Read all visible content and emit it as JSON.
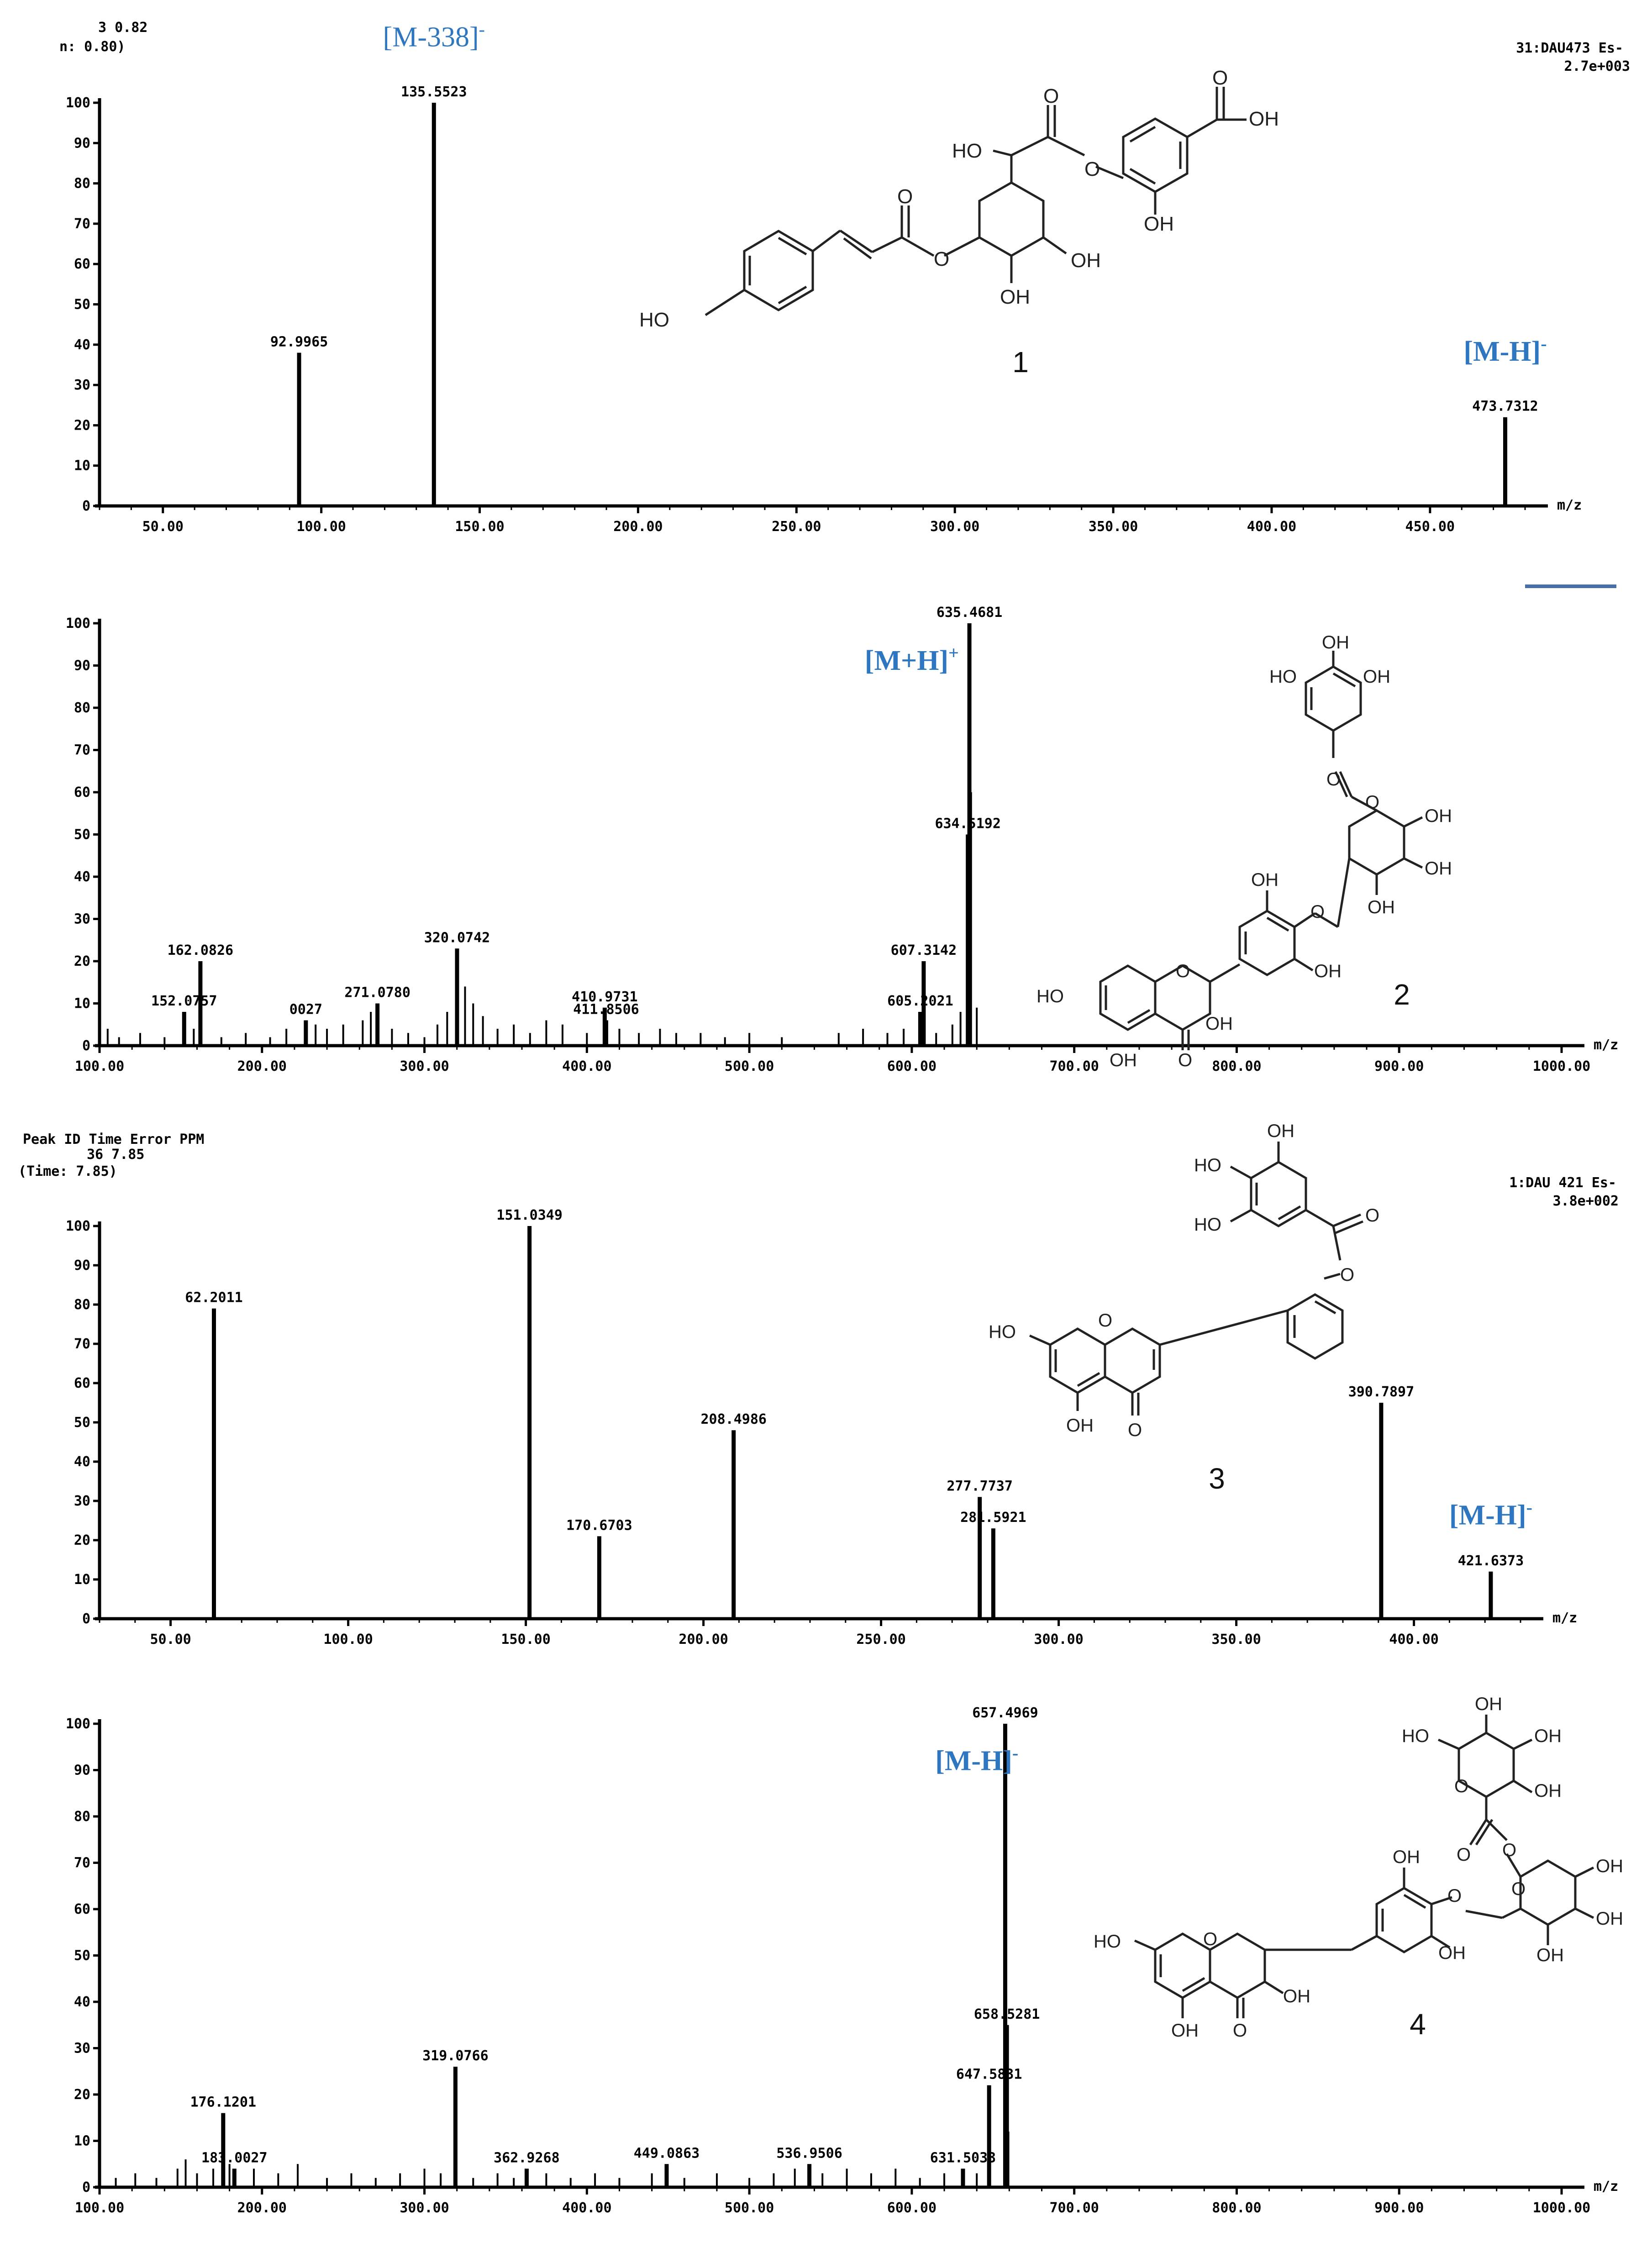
{
  "panels": [
    {
      "id": "p1",
      "header": {
        "lines": [
          "3   0.82",
          "n: 0.80)"
        ],
        "right_lines": [
          "31:DAU473  Es-",
          "2.7e+003"
        ]
      },
      "compound_number": "1",
      "unit_label": "m/z",
      "chart_data": {
        "type": "bar",
        "xlabel": "m/z",
        "ylabel": "",
        "xlim": [
          30,
          480
        ],
        "ylim": [
          0,
          100
        ],
        "x_ticks": [
          50,
          100,
          150,
          200,
          250,
          300,
          350,
          400,
          450
        ],
        "x_tick_labels": [
          "50.00",
          "100.00",
          "150.00",
          "200.00",
          "250.00",
          "300.00",
          "350.00",
          "400.00",
          "450.00"
        ],
        "y_ticks": [
          0,
          10,
          20,
          30,
          40,
          50,
          60,
          70,
          80,
          90,
          100
        ],
        "y_tick_labels": [
          "0",
          "10",
          "20",
          "30",
          "40",
          "50",
          "60",
          "70",
          "80",
          "90",
          "100"
        ],
        "peaks": [
          {
            "x": 92.9965,
            "y": 38,
            "label": "92.9965"
          },
          {
            "x": 135.5523,
            "y": 100,
            "label": "135.5523"
          },
          {
            "x": 473.7312,
            "y": 22,
            "label": "473.7312"
          }
        ],
        "annotations": [
          {
            "text": "[M-338]",
            "sup": "-",
            "x": 135.5523,
            "y": 114
          },
          {
            "text": "[M-H]",
            "sup": "-",
            "x": 473.7312,
            "y": 36
          }
        ]
      }
    },
    {
      "id": "p2",
      "header": {
        "lines": [],
        "right_lines": []
      },
      "compound_number": "2",
      "unit_label": "m/z",
      "chart_data": {
        "type": "bar",
        "xlabel": "m/z",
        "ylabel": "",
        "xlim": [
          100,
          1000
        ],
        "ylim": [
          0,
          100
        ],
        "x_ticks": [
          100,
          200,
          300,
          400,
          500,
          600,
          700,
          800,
          900,
          1000
        ],
        "x_tick_labels": [
          "100.00",
          "200.00",
          "300.00",
          "400.00",
          "500.00",
          "600.00",
          "700.00",
          "800.00",
          "900.00",
          "1000.00"
        ],
        "y_ticks": [
          0,
          10,
          20,
          30,
          40,
          50,
          60,
          70,
          80,
          90,
          100
        ],
        "y_tick_labels": [
          "0",
          "10",
          "20",
          "30",
          "40",
          "50",
          "60",
          "70",
          "80",
          "90",
          "100"
        ],
        "peaks": [
          {
            "x": 152.0757,
            "y": 8,
            "label": "152.0757"
          },
          {
            "x": 162.0826,
            "y": 20,
            "label": "162.0826"
          },
          {
            "x": 227.0027,
            "y": 6,
            "label": "0027"
          },
          {
            "x": 271.078,
            "y": 10,
            "label": "271.0780"
          },
          {
            "x": 320.0742,
            "y": 23,
            "label": "320.0742"
          },
          {
            "x": 410.9731,
            "y": 9,
            "label": "410.9731"
          },
          {
            "x": 411.8506,
            "y": 6,
            "label": "411.8506"
          },
          {
            "x": 605.2021,
            "y": 8,
            "label": "605.2021"
          },
          {
            "x": 607.3142,
            "y": 20,
            "label": "607.3142"
          },
          {
            "x": 634.5192,
            "y": 50,
            "label": "634.5192"
          },
          {
            "x": 635.4681,
            "y": 100,
            "label": "635.4681"
          },
          {
            "x": 636.5,
            "y": 60,
            "label": ""
          },
          {
            "x": 105,
            "y": 4,
            "label": ""
          },
          {
            "x": 112,
            "y": 2,
            "label": ""
          },
          {
            "x": 125,
            "y": 3,
            "label": ""
          },
          {
            "x": 140,
            "y": 2,
            "label": ""
          },
          {
            "x": 158,
            "y": 4,
            "label": ""
          },
          {
            "x": 175,
            "y": 2,
            "label": ""
          },
          {
            "x": 190,
            "y": 3,
            "label": ""
          },
          {
            "x": 205,
            "y": 2,
            "label": ""
          },
          {
            "x": 215,
            "y": 4,
            "label": ""
          },
          {
            "x": 233,
            "y": 5,
            "label": ""
          },
          {
            "x": 240,
            "y": 4,
            "label": ""
          },
          {
            "x": 250,
            "y": 5,
            "label": ""
          },
          {
            "x": 262,
            "y": 6,
            "label": ""
          },
          {
            "x": 267,
            "y": 8,
            "label": ""
          },
          {
            "x": 280,
            "y": 4,
            "label": ""
          },
          {
            "x": 290,
            "y": 3,
            "label": ""
          },
          {
            "x": 300,
            "y": 2,
            "label": ""
          },
          {
            "x": 308,
            "y": 5,
            "label": ""
          },
          {
            "x": 314,
            "y": 8,
            "label": ""
          },
          {
            "x": 325,
            "y": 14,
            "label": ""
          },
          {
            "x": 330,
            "y": 10,
            "label": ""
          },
          {
            "x": 336,
            "y": 7,
            "label": ""
          },
          {
            "x": 345,
            "y": 4,
            "label": ""
          },
          {
            "x": 355,
            "y": 5,
            "label": ""
          },
          {
            "x": 365,
            "y": 3,
            "label": ""
          },
          {
            "x": 375,
            "y": 6,
            "label": ""
          },
          {
            "x": 385,
            "y": 5,
            "label": ""
          },
          {
            "x": 400,
            "y": 3,
            "label": ""
          },
          {
            "x": 420,
            "y": 4,
            "label": ""
          },
          {
            "x": 432,
            "y": 3,
            "label": ""
          },
          {
            "x": 445,
            "y": 4,
            "label": ""
          },
          {
            "x": 455,
            "y": 3,
            "label": ""
          },
          {
            "x": 470,
            "y": 3,
            "label": ""
          },
          {
            "x": 485,
            "y": 2,
            "label": ""
          },
          {
            "x": 500,
            "y": 3,
            "label": ""
          },
          {
            "x": 520,
            "y": 2,
            "label": ""
          },
          {
            "x": 555,
            "y": 3,
            "label": ""
          },
          {
            "x": 570,
            "y": 4,
            "label": ""
          },
          {
            "x": 585,
            "y": 3,
            "label": ""
          },
          {
            "x": 595,
            "y": 4,
            "label": ""
          },
          {
            "x": 615,
            "y": 3,
            "label": ""
          },
          {
            "x": 625,
            "y": 5,
            "label": ""
          },
          {
            "x": 630,
            "y": 8,
            "label": ""
          },
          {
            "x": 640,
            "y": 9,
            "label": ""
          }
        ],
        "annotations": [
          {
            "text": "[M+H]",
            "sup": "+",
            "x": 600,
            "y": 89
          }
        ]
      }
    },
    {
      "id": "p3",
      "header": {
        "lines": [
          "Peak ID   Time    Error PPM",
          "36    7.85",
          "(Time: 7.85)"
        ],
        "right_lines": [
          "1:DAU 421 Es-",
          "3.8e+002"
        ]
      },
      "compound_number": "3",
      "unit_label": "m/z",
      "chart_data": {
        "type": "bar",
        "xlabel": "m/z",
        "ylabel": "",
        "xlim": [
          30,
          430
        ],
        "ylim": [
          0,
          100
        ],
        "x_ticks": [
          50,
          100,
          150,
          200,
          250,
          300,
          350,
          400
        ],
        "x_tick_labels": [
          "50.00",
          "100.00",
          "150.00",
          "200.00",
          "250.00",
          "300.00",
          "350.00",
          "400.00"
        ],
        "y_ticks": [
          0,
          10,
          20,
          30,
          40,
          50,
          60,
          70,
          80,
          90,
          100
        ],
        "y_tick_labels": [
          "0",
          "10",
          "20",
          "30",
          "40",
          "50",
          "60",
          "70",
          "80",
          "90",
          "100"
        ],
        "peaks": [
          {
            "x": 62.2011,
            "y": 79,
            "label": "62.2011"
          },
          {
            "x": 151.0349,
            "y": 100,
            "label": "151.0349"
          },
          {
            "x": 170.6703,
            "y": 21,
            "label": "170.6703"
          },
          {
            "x": 208.4986,
            "y": 48,
            "label": "208.4986"
          },
          {
            "x": 277.7737,
            "y": 31,
            "label": "277.7737"
          },
          {
            "x": 281.5921,
            "y": 23,
            "label": "281.5921"
          },
          {
            "x": 390.7897,
            "y": 55,
            "label": "390.7897"
          },
          {
            "x": 421.6373,
            "y": 12,
            "label": "421.6373"
          }
        ],
        "annotations": [
          {
            "text": "[M-H]",
            "sup": "-",
            "x": 421.6373,
            "y": 24
          }
        ]
      }
    },
    {
      "id": "p4",
      "header": {
        "lines": [],
        "right_lines": []
      },
      "compound_number": "4",
      "unit_label": "m/z",
      "chart_data": {
        "type": "bar",
        "xlabel": "m/z",
        "ylabel": "",
        "xlim": [
          100,
          1000
        ],
        "ylim": [
          0,
          100
        ],
        "x_ticks": [
          100,
          200,
          300,
          400,
          500,
          600,
          700,
          800,
          900,
          1000
        ],
        "x_tick_labels": [
          "100.00",
          "200.00",
          "300.00",
          "400.00",
          "500.00",
          "600.00",
          "700.00",
          "800.00",
          "900.00",
          "1000.00"
        ],
        "y_ticks": [
          0,
          10,
          20,
          30,
          40,
          50,
          60,
          70,
          80,
          90,
          100
        ],
        "y_tick_labels": [
          "0",
          "10",
          "20",
          "30",
          "40",
          "50",
          "60",
          "70",
          "80",
          "90",
          "100"
        ],
        "peaks": [
          {
            "x": 176.1201,
            "y": 16,
            "label": "176.1201"
          },
          {
            "x": 183.0027,
            "y": 4,
            "label": "183.0027"
          },
          {
            "x": 319.0766,
            "y": 26,
            "label": "319.0766"
          },
          {
            "x": 362.9268,
            "y": 4,
            "label": "362.9268"
          },
          {
            "x": 449.0863,
            "y": 5,
            "label": "449.0863"
          },
          {
            "x": 536.9506,
            "y": 5,
            "label": "536.9506"
          },
          {
            "x": 631.5033,
            "y": 4,
            "label": "631.5033"
          },
          {
            "x": 647.5831,
            "y": 22,
            "label": "647.5831"
          },
          {
            "x": 657.4969,
            "y": 100,
            "label": "657.4969"
          },
          {
            "x": 658.5281,
            "y": 35,
            "label": "658.5281"
          },
          {
            "x": 659.5,
            "y": 12,
            "label": ""
          },
          {
            "x": 110,
            "y": 2,
            "label": ""
          },
          {
            "x": 122,
            "y": 3,
            "label": ""
          },
          {
            "x": 135,
            "y": 2,
            "label": ""
          },
          {
            "x": 148,
            "y": 4,
            "label": ""
          },
          {
            "x": 153,
            "y": 6,
            "label": ""
          },
          {
            "x": 160,
            "y": 3,
            "label": ""
          },
          {
            "x": 170,
            "y": 4,
            "label": ""
          },
          {
            "x": 180,
            "y": 5,
            "label": ""
          },
          {
            "x": 195,
            "y": 4,
            "label": ""
          },
          {
            "x": 210,
            "y": 3,
            "label": ""
          },
          {
            "x": 222,
            "y": 5,
            "label": ""
          },
          {
            "x": 240,
            "y": 2,
            "label": ""
          },
          {
            "x": 255,
            "y": 3,
            "label": ""
          },
          {
            "x": 270,
            "y": 2,
            "label": ""
          },
          {
            "x": 285,
            "y": 3,
            "label": ""
          },
          {
            "x": 300,
            "y": 4,
            "label": ""
          },
          {
            "x": 310,
            "y": 3,
            "label": ""
          },
          {
            "x": 330,
            "y": 2,
            "label": ""
          },
          {
            "x": 345,
            "y": 3,
            "label": ""
          },
          {
            "x": 355,
            "y": 2,
            "label": ""
          },
          {
            "x": 375,
            "y": 3,
            "label": ""
          },
          {
            "x": 390,
            "y": 2,
            "label": ""
          },
          {
            "x": 405,
            "y": 3,
            "label": ""
          },
          {
            "x": 420,
            "y": 2,
            "label": ""
          },
          {
            "x": 440,
            "y": 3,
            "label": ""
          },
          {
            "x": 460,
            "y": 2,
            "label": ""
          },
          {
            "x": 480,
            "y": 3,
            "label": ""
          },
          {
            "x": 500,
            "y": 2,
            "label": ""
          },
          {
            "x": 515,
            "y": 3,
            "label": ""
          },
          {
            "x": 528,
            "y": 4,
            "label": ""
          },
          {
            "x": 545,
            "y": 3,
            "label": ""
          },
          {
            "x": 560,
            "y": 4,
            "label": ""
          },
          {
            "x": 575,
            "y": 3,
            "label": ""
          },
          {
            "x": 590,
            "y": 4,
            "label": ""
          },
          {
            "x": 605,
            "y": 2,
            "label": ""
          },
          {
            "x": 620,
            "y": 3,
            "label": ""
          },
          {
            "x": 640,
            "y": 3,
            "label": ""
          }
        ],
        "annotations": [
          {
            "text": "[M-H]",
            "sup": "-",
            "x": 640,
            "y": 90
          }
        ]
      }
    }
  ]
}
